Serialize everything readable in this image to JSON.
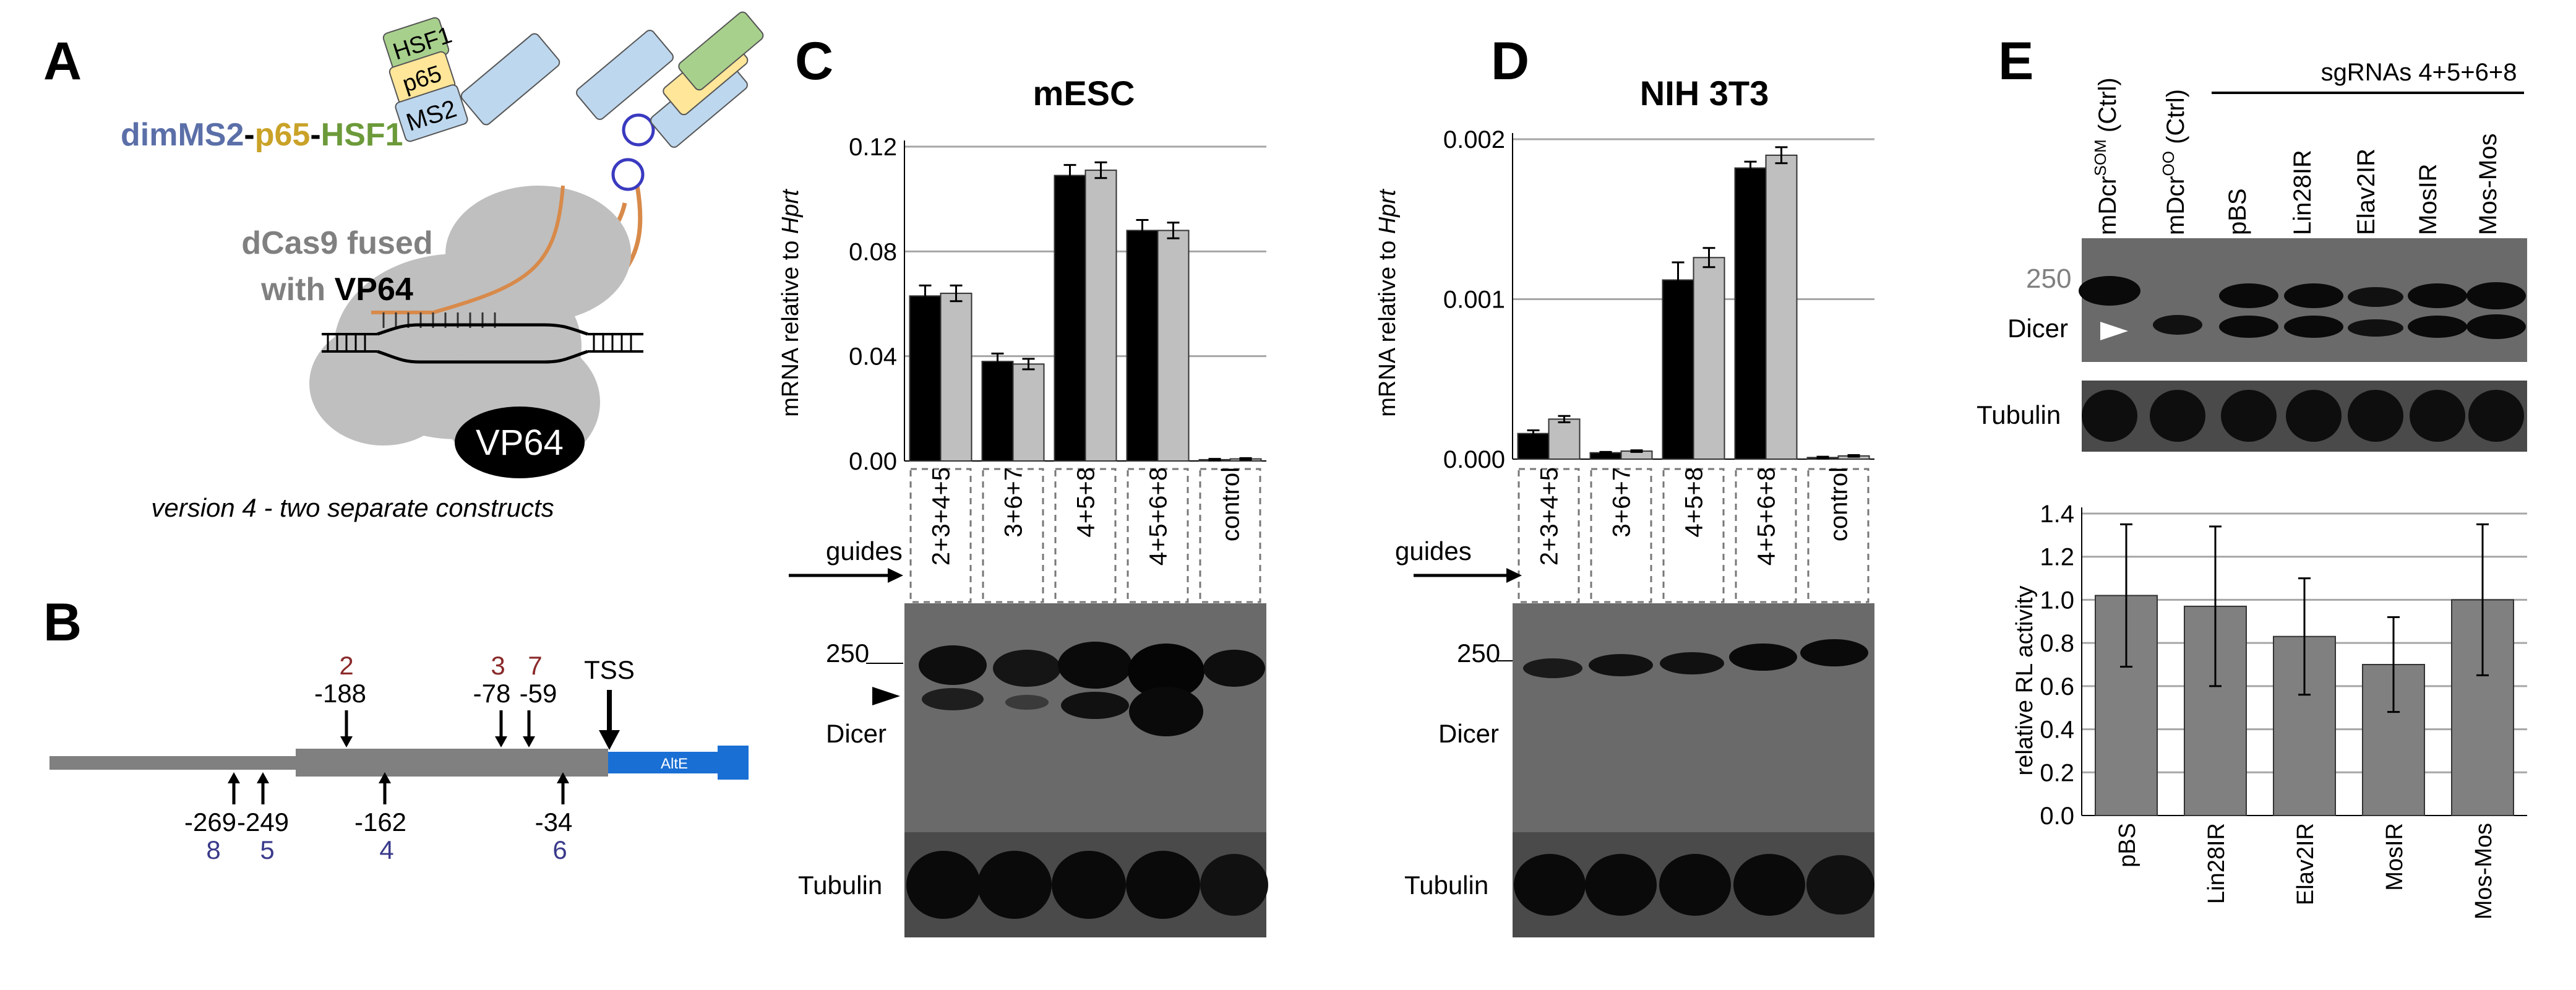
{
  "panels": {
    "A": {
      "letter": "A",
      "label_dimMS2": "dimMS2",
      "label_dash1": "-",
      "label_p65": "p65",
      "label_dash2": "-",
      "label_HSF1": "HSF1",
      "box_HSF1": "HSF1",
      "box_p65": "p65",
      "box_MS2": "MS2",
      "dcas9_line1": "dCas9 fused",
      "dcas9_line2_a": "with ",
      "dcas9_line2_b": "VP64",
      "vp64": "VP64",
      "caption": "version 4 - two separate constructs",
      "colors": {
        "dimMS2": "#5b6fa8",
        "p65": "#c9a227",
        "HSF1": "#6c9a3a",
        "dcas9": "#808080",
        "guide_rna": "#d88a4a"
      }
    },
    "B": {
      "letter": "B",
      "tss": "TSS",
      "exon_label": "AltE",
      "upper_sites": [
        {
          "num": "2",
          "pos": "-188"
        },
        {
          "num": "3",
          "pos": "-78"
        },
        {
          "num": "7",
          "pos": "-59"
        }
      ],
      "lower_sites": [
        {
          "num": "8",
          "pos": "-269"
        },
        {
          "num": "5",
          "pos": "-249"
        },
        {
          "num": "4",
          "pos": "-162"
        },
        {
          "num": "6",
          "pos": "-34"
        }
      ],
      "colors": {
        "upper_num": "#8b2a2a",
        "lower_num": "#3a3a8b",
        "exon": "#1a6fd4"
      }
    },
    "C": {
      "letter": "C",
      "blot_250": "250",
      "blot_dicer": "Dicer",
      "blot_tubulin": "Tubulin",
      "guides_label": "guides"
    },
    "D": {
      "letter": "D",
      "blot_250": "250",
      "blot_dicer": "Dicer",
      "blot_tubulin": "Tubulin",
      "guides_label": "guides"
    },
    "E": {
      "letter": "E",
      "lane_mDcrSOM": "mDcr",
      "lane_mDcrSOM_sup": "SOM",
      "lane_mDcrSOM_suffix": " (Ctrl)",
      "lane_mDcrOO": "mDcr",
      "lane_mDcrOO_sup": "OO",
      "lane_mDcrOO_suffix": " (Ctrl)",
      "sgrna_label": "sgRNAs 4+5+6+8",
      "lanes": [
        "pBS",
        "Lin28IR",
        "Elav2IR",
        "MosIR",
        "Mos-Mos"
      ],
      "blot_250": "250",
      "blot_dicer": "Dicer",
      "blot_tubulin": "Tubulin"
    }
  },
  "chart_data": [
    {
      "type": "bar",
      "title": "mESC",
      "ylabel": "mRNA relative to Hprt",
      "ylim": [
        0,
        0.12
      ],
      "yticks": [
        "0.00",
        "0.04",
        "0.08",
        "0.12"
      ],
      "categories": [
        "2+3+4+5",
        "3+6+7",
        "4+5+8",
        "4+5+6+8",
        "control"
      ],
      "grid": true,
      "series": [
        {
          "values": [
            0.063,
            0.038,
            0.109,
            0.088,
            0.0005
          ],
          "errors": [
            0.004,
            0.003,
            0.004,
            0.004,
            0.0003
          ],
          "color": "#000000"
        },
        {
          "values": [
            0.064,
            0.037,
            0.111,
            0.088,
            0.0008
          ],
          "errors": [
            0.003,
            0.002,
            0.003,
            0.003,
            0.0003
          ],
          "color": "#bfbfbf"
        }
      ]
    },
    {
      "type": "bar",
      "title": "NIH 3T3",
      "ylabel": "mRNA relative to Hprt",
      "ylim": [
        0,
        0.002
      ],
      "yticks": [
        "0.000",
        "0.001",
        "0.002"
      ],
      "categories": [
        "2+3+4+5",
        "3+6+7",
        "4+5+8",
        "4+5+6+8",
        "control"
      ],
      "grid": true,
      "series": [
        {
          "values": [
            0.00016,
            4e-05,
            0.00112,
            0.00182,
            1e-05
          ],
          "errors": [
            2e-05,
            5e-06,
            0.00011,
            4e-05,
            5e-06
          ],
          "color": "#000000"
        },
        {
          "values": [
            0.00025,
            5e-05,
            0.00126,
            0.0019,
            2e-05
          ],
          "errors": [
            2e-05,
            5e-06,
            6e-05,
            5e-05,
            5e-06
          ],
          "color": "#bfbfbf"
        }
      ]
    },
    {
      "type": "bar",
      "ylabel": "relative RL activity",
      "ylim": [
        0,
        1.4
      ],
      "yticks": [
        "0.0",
        "0.2",
        "0.4",
        "0.6",
        "0.8",
        "1.0",
        "1.2",
        "1.4"
      ],
      "categories": [
        "pBS",
        "Lin28IR",
        "Elav2IR",
        "MosIR",
        "Mos-Mos"
      ],
      "grid": true,
      "series": [
        {
          "values": [
            1.02,
            0.97,
            0.83,
            0.7,
            1.0
          ],
          "errors": [
            0.33,
            0.37,
            0.27,
            0.22,
            0.35
          ],
          "color": "#808080"
        }
      ]
    }
  ]
}
